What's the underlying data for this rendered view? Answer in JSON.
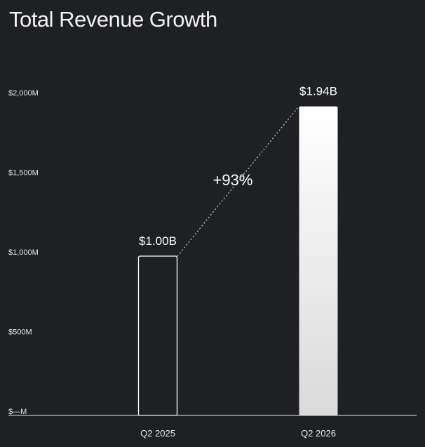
{
  "chart_data": {
    "type": "bar",
    "title": "Total Revenue Growth",
    "categories": [
      "Q2 2025",
      "Q2 2026"
    ],
    "values": [
      1000,
      1940
    ],
    "value_unit": "$M",
    "data_labels": [
      "$1.00B",
      "$1.94B"
    ],
    "y_ticks": [
      {
        "value": 0,
        "label": "$—M"
      },
      {
        "value": 500,
        "label": "$500M"
      },
      {
        "value": 1000,
        "label": "$1,000M"
      },
      {
        "value": 1500,
        "label": "$1,500M"
      },
      {
        "value": 2000,
        "label": "$2,000M"
      }
    ],
    "ylim": [
      0,
      2000
    ],
    "grid": false,
    "annotation": "+93%",
    "colors": {
      "background": "#1e2023",
      "outline_bar": "#ffffff",
      "filled_bar_top": "#ffffff",
      "filled_bar_bottom": "#dadada",
      "text": "#e6e6e6"
    }
  }
}
